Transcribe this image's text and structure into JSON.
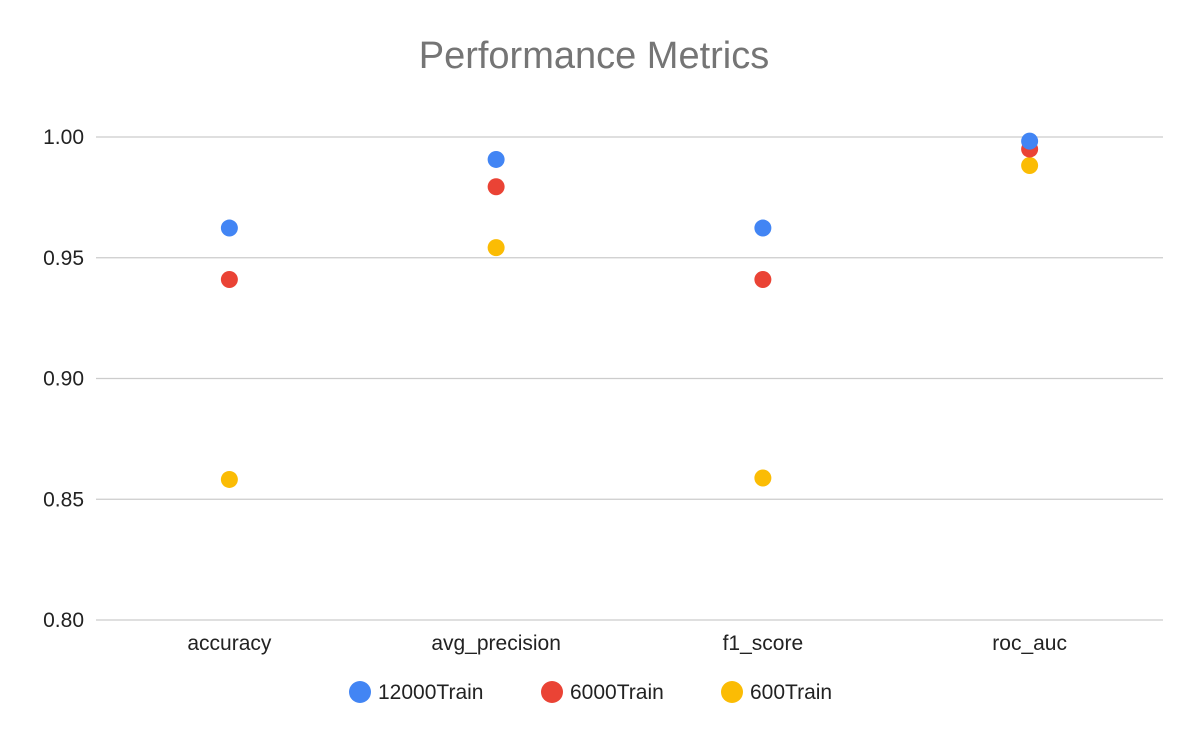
{
  "chart_data": {
    "type": "scatter",
    "title": "Performance Metrics",
    "xlabel": "",
    "ylabel": "",
    "categories": [
      "accuracy",
      "avg_precision",
      "f1_score",
      "roc_auc"
    ],
    "ylim": [
      0.8,
      1.0
    ],
    "yticks": [
      "0.80",
      "0.85",
      "0.90",
      "0.95",
      "1.00"
    ],
    "grid": true,
    "legend_position": "bottom",
    "series": [
      {
        "name": "12000Train",
        "color": "#4285f4",
        "values": [
          0.9623,
          0.9907,
          0.9623,
          0.9983
        ]
      },
      {
        "name": "6000Train",
        "color": "#ea4335",
        "values": [
          0.941,
          0.9794,
          0.941,
          0.995
        ]
      },
      {
        "name": "600Train",
        "color": "#fbbc04",
        "values": [
          0.8582,
          0.9542,
          0.8588,
          0.9882
        ]
      }
    ]
  }
}
